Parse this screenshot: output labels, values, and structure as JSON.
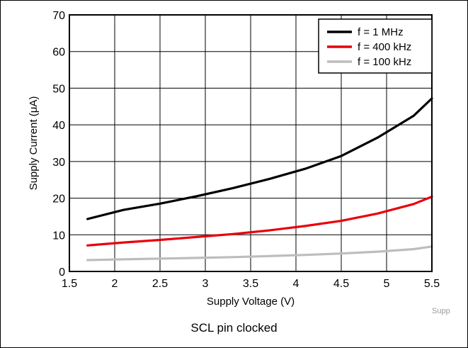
{
  "caption": "SCL pin clocked",
  "watermark": "Supp",
  "chart_data": {
    "type": "line",
    "title": "",
    "xlabel": "Supply Voltage (V)",
    "ylabel": "Supply Current (μA)",
    "xlim": [
      1.5,
      5.5
    ],
    "ylim": [
      0,
      70
    ],
    "xticks": [
      "1.5",
      "2",
      "2.5",
      "3",
      "3.5",
      "4",
      "4.5",
      "5",
      "5.5"
    ],
    "yticks": [
      "0",
      "10",
      "20",
      "30",
      "40",
      "50",
      "60",
      "70"
    ],
    "grid": true,
    "legend_position": "top-right",
    "series": [
      {
        "name": "f = 1 MHz",
        "color": "#000000",
        "x": [
          1.7,
          2.1,
          2.5,
          2.9,
          3.3,
          3.7,
          4.1,
          4.5,
          4.9,
          5.3,
          5.5
        ],
        "y": [
          14.3,
          16.8,
          18.5,
          20.5,
          22.7,
          25.2,
          28.0,
          31.5,
          36.5,
          42.5,
          47.2
        ]
      },
      {
        "name": "f = 400 kHz",
        "color": "#e8000b",
        "x": [
          1.7,
          2.1,
          2.5,
          2.9,
          3.3,
          3.7,
          4.1,
          4.5,
          4.9,
          5.3,
          5.5
        ],
        "y": [
          7.1,
          7.9,
          8.6,
          9.4,
          10.2,
          11.2,
          12.4,
          13.8,
          15.8,
          18.4,
          20.4
        ]
      },
      {
        "name": "f = 100 kHz",
        "color": "#bdbdbd",
        "x": [
          1.7,
          2.1,
          2.5,
          2.9,
          3.3,
          3.7,
          4.1,
          4.5,
          4.9,
          5.3,
          5.5
        ],
        "y": [
          3.1,
          3.3,
          3.5,
          3.7,
          3.9,
          4.2,
          4.5,
          4.9,
          5.4,
          6.1,
          6.8
        ]
      }
    ]
  }
}
